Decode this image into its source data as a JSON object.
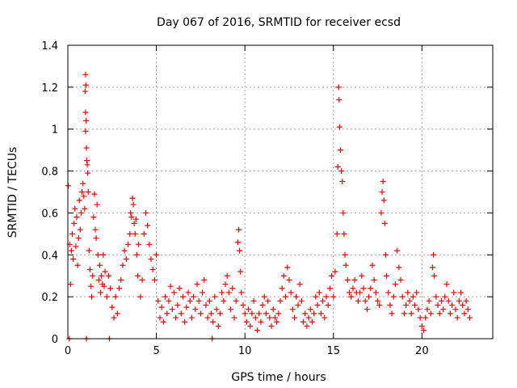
{
  "chart_data": {
    "type": "scatter",
    "title": "Day 067 of 2016, SRMTID for receiver ecsd",
    "xlabel": "GPS time / hours",
    "ylabel": "SRMTID / TECUs",
    "xlim": [
      0,
      24
    ],
    "ylim": [
      0,
      1.4
    ],
    "x_ticks": [
      0,
      5,
      10,
      15,
      20
    ],
    "x_tick_labels": [
      "0",
      "5",
      "10",
      "15",
      "20"
    ],
    "y_ticks": [
      0,
      0.2,
      0.4,
      0.6,
      0.8,
      1,
      1.2,
      1.4
    ],
    "y_tick_labels": [
      "0",
      "0.2",
      "0.4",
      "0.6",
      "0.8",
      "1",
      "1.2",
      "1.4"
    ],
    "grid": true,
    "marker": "+",
    "series": [
      {
        "name": "SRMTID",
        "color": "#ff0000",
        "points": [
          [
            0.02,
            0.73
          ],
          [
            0.08,
            0.0
          ],
          [
            0.1,
            0.45
          ],
          [
            0.15,
            0.26
          ],
          [
            0.2,
            0.42
          ],
          [
            0.25,
            0.5
          ],
          [
            0.3,
            0.38
          ],
          [
            0.35,
            0.55
          ],
          [
            0.4,
            0.62
          ],
          [
            0.45,
            0.44
          ],
          [
            0.5,
            0.58
          ],
          [
            0.55,
            0.35
          ],
          [
            0.6,
            0.48
          ],
          [
            0.65,
            0.66
          ],
          [
            0.7,
            0.52
          ],
          [
            0.75,
            0.6
          ],
          [
            0.8,
            0.7
          ],
          [
            0.85,
            0.74
          ],
          [
            0.9,
            0.68
          ],
          [
            0.95,
            0.62
          ],
          [
            0.98,
            1.18
          ],
          [
            1.0,
            1.26
          ],
          [
            1.02,
            1.21
          ],
          [
            1.0,
            1.08
          ],
          [
            1.03,
            1.04
          ],
          [
            1.0,
            0.99
          ],
          [
            1.05,
            0.91
          ],
          [
            1.07,
            0.85
          ],
          [
            1.1,
            0.83
          ],
          [
            1.12,
            0.79
          ],
          [
            1.15,
            0.7
          ],
          [
            1.05,
            0.0
          ],
          [
            1.2,
            0.42
          ],
          [
            1.25,
            0.33
          ],
          [
            1.3,
            0.25
          ],
          [
            1.35,
            0.2
          ],
          [
            1.4,
            0.3
          ],
          [
            1.45,
            0.58
          ],
          [
            1.5,
            0.69
          ],
          [
            1.55,
            0.52
          ],
          [
            1.6,
            0.48
          ],
          [
            1.65,
            0.64
          ],
          [
            1.7,
            0.4
          ],
          [
            1.75,
            0.28
          ],
          [
            1.8,
            0.35
          ],
          [
            1.85,
            0.22
          ],
          [
            1.9,
            0.3
          ],
          [
            1.95,
            0.26
          ],
          [
            2.0,
            0.4
          ],
          [
            2.05,
            0.25
          ],
          [
            2.1,
            0.32
          ],
          [
            2.2,
            0.2
          ],
          [
            2.3,
            0.3
          ],
          [
            2.35,
            0.0
          ],
          [
            2.4,
            0.24
          ],
          [
            2.5,
            0.15
          ],
          [
            2.6,
            0.1
          ],
          [
            2.7,
            0.2
          ],
          [
            2.8,
            0.12
          ],
          [
            2.9,
            0.24
          ],
          [
            3.0,
            0.28
          ],
          [
            3.1,
            0.35
          ],
          [
            3.2,
            0.42
          ],
          [
            3.3,
            0.38
          ],
          [
            3.4,
            0.45
          ],
          [
            3.5,
            0.5
          ],
          [
            3.55,
            0.6
          ],
          [
            3.6,
            0.58
          ],
          [
            3.65,
            0.67
          ],
          [
            3.7,
            0.64
          ],
          [
            3.75,
            0.55
          ],
          [
            3.8,
            0.5
          ],
          [
            3.85,
            0.57
          ],
          [
            3.9,
            0.4
          ],
          [
            3.95,
            0.3
          ],
          [
            4.0,
            0.45
          ],
          [
            4.1,
            0.2
          ],
          [
            4.2,
            0.28
          ],
          [
            4.3,
            0.5
          ],
          [
            4.4,
            0.6
          ],
          [
            4.5,
            0.54
          ],
          [
            4.6,
            0.45
          ],
          [
            4.7,
            0.38
          ],
          [
            4.8,
            0.33
          ],
          [
            4.9,
            0.28
          ],
          [
            5.0,
            0.4
          ],
          [
            5.1,
            0.18
          ],
          [
            5.2,
            0.1
          ],
          [
            5.3,
            0.15
          ],
          [
            5.4,
            0.08
          ],
          [
            5.5,
            0.2
          ],
          [
            5.6,
            0.12
          ],
          [
            5.7,
            0.18
          ],
          [
            5.8,
            0.25
          ],
          [
            5.9,
            0.14
          ],
          [
            6.0,
            0.22
          ],
          [
            6.1,
            0.1
          ],
          [
            6.2,
            0.16
          ],
          [
            6.3,
            0.24
          ],
          [
            6.4,
            0.12
          ],
          [
            6.5,
            0.2
          ],
          [
            6.6,
            0.08
          ],
          [
            6.7,
            0.15
          ],
          [
            6.8,
            0.22
          ],
          [
            6.9,
            0.18
          ],
          [
            7.0,
            0.1
          ],
          [
            7.1,
            0.2
          ],
          [
            7.2,
            0.14
          ],
          [
            7.3,
            0.26
          ],
          [
            7.4,
            0.18
          ],
          [
            7.5,
            0.12
          ],
          [
            7.6,
            0.22
          ],
          [
            7.7,
            0.28
          ],
          [
            7.8,
            0.16
          ],
          [
            7.9,
            0.1
          ],
          [
            8.0,
            0.18
          ],
          [
            8.1,
            0.12
          ],
          [
            8.15,
            0.0
          ],
          [
            8.2,
            0.08
          ],
          [
            8.3,
            0.2
          ],
          [
            8.4,
            0.14
          ],
          [
            8.5,
            0.06
          ],
          [
            8.6,
            0.12
          ],
          [
            8.7,
            0.22
          ],
          [
            8.8,
            0.18
          ],
          [
            8.9,
            0.26
          ],
          [
            9.0,
            0.3
          ],
          [
            9.1,
            0.22
          ],
          [
            9.2,
            0.14
          ],
          [
            9.3,
            0.24
          ],
          [
            9.4,
            0.1
          ],
          [
            9.5,
            0.18
          ],
          [
            9.6,
            0.46
          ],
          [
            9.65,
            0.52
          ],
          [
            9.7,
            0.42
          ],
          [
            9.75,
            0.32
          ],
          [
            9.8,
            0.22
          ],
          [
            9.9,
            0.16
          ],
          [
            10.0,
            0.12
          ],
          [
            10.1,
            0.08
          ],
          [
            10.2,
            0.14
          ],
          [
            10.3,
            0.06
          ],
          [
            10.4,
            0.12
          ],
          [
            10.5,
            0.18
          ],
          [
            10.6,
            0.1
          ],
          [
            10.7,
            0.04
          ],
          [
            10.8,
            0.12
          ],
          [
            10.9,
            0.08
          ],
          [
            11.0,
            0.16
          ],
          [
            11.1,
            0.2
          ],
          [
            11.2,
            0.12
          ],
          [
            11.3,
            0.18
          ],
          [
            11.4,
            0.1
          ],
          [
            11.5,
            0.06
          ],
          [
            11.6,
            0.14
          ],
          [
            11.7,
            0.1
          ],
          [
            11.8,
            0.08
          ],
          [
            11.9,
            0.12
          ],
          [
            12.0,
            0.18
          ],
          [
            12.1,
            0.24
          ],
          [
            12.2,
            0.3
          ],
          [
            12.3,
            0.2
          ],
          [
            12.4,
            0.34
          ],
          [
            12.5,
            0.28
          ],
          [
            12.6,
            0.22
          ],
          [
            12.7,
            0.14
          ],
          [
            12.8,
            0.1
          ],
          [
            12.9,
            0.2
          ],
          [
            13.0,
            0.16
          ],
          [
            13.1,
            0.26
          ],
          [
            13.2,
            0.18
          ],
          [
            13.3,
            0.08
          ],
          [
            13.4,
            0.12
          ],
          [
            13.5,
            0.06
          ],
          [
            13.6,
            0.1
          ],
          [
            13.7,
            0.14
          ],
          [
            13.8,
            0.08
          ],
          [
            13.9,
            0.12
          ],
          [
            14.0,
            0.2
          ],
          [
            14.1,
            0.16
          ],
          [
            14.2,
            0.22
          ],
          [
            14.3,
            0.12
          ],
          [
            14.4,
            0.18
          ],
          [
            14.5,
            0.1
          ],
          [
            14.6,
            0.2
          ],
          [
            14.7,
            0.16
          ],
          [
            14.8,
            0.24
          ],
          [
            14.9,
            0.3
          ],
          [
            15.0,
            0.2
          ],
          [
            15.1,
            0.32
          ],
          [
            15.2,
            0.5
          ],
          [
            15.25,
            0.82
          ],
          [
            15.3,
            1.2
          ],
          [
            15.32,
            1.14
          ],
          [
            15.35,
            1.01
          ],
          [
            15.4,
            0.9
          ],
          [
            15.45,
            0.8
          ],
          [
            15.5,
            0.75
          ],
          [
            15.55,
            0.6
          ],
          [
            15.6,
            0.5
          ],
          [
            15.65,
            0.4
          ],
          [
            15.7,
            0.35
          ],
          [
            15.8,
            0.28
          ],
          [
            15.9,
            0.22
          ],
          [
            16.0,
            0.2
          ],
          [
            16.1,
            0.24
          ],
          [
            16.2,
            0.28
          ],
          [
            16.3,
            0.22
          ],
          [
            16.4,
            0.18
          ],
          [
            16.5,
            0.22
          ],
          [
            16.6,
            0.3
          ],
          [
            16.7,
            0.24
          ],
          [
            16.8,
            0.18
          ],
          [
            16.9,
            0.14
          ],
          [
            17.0,
            0.2
          ],
          [
            17.1,
            0.24
          ],
          [
            17.2,
            0.35
          ],
          [
            17.3,
            0.28
          ],
          [
            17.4,
            0.22
          ],
          [
            17.5,
            0.18
          ],
          [
            17.6,
            0.16
          ],
          [
            17.7,
            0.6
          ],
          [
            17.75,
            0.7
          ],
          [
            17.8,
            0.75
          ],
          [
            17.85,
            0.66
          ],
          [
            17.9,
            0.55
          ],
          [
            17.95,
            0.4
          ],
          [
            18.0,
            0.3
          ],
          [
            18.1,
            0.22
          ],
          [
            18.2,
            0.16
          ],
          [
            18.3,
            0.12
          ],
          [
            18.4,
            0.2
          ],
          [
            18.5,
            0.26
          ],
          [
            18.6,
            0.42
          ],
          [
            18.7,
            0.34
          ],
          [
            18.8,
            0.28
          ],
          [
            18.9,
            0.2
          ],
          [
            19.0,
            0.12
          ],
          [
            19.1,
            0.16
          ],
          [
            19.2,
            0.22
          ],
          [
            19.3,
            0.18
          ],
          [
            19.4,
            0.12
          ],
          [
            19.5,
            0.2
          ],
          [
            19.6,
            0.16
          ],
          [
            19.7,
            0.22
          ],
          [
            19.8,
            0.14
          ],
          [
            19.9,
            0.1
          ],
          [
            20.0,
            0.06
          ],
          [
            20.1,
            0.04
          ],
          [
            20.2,
            0.1
          ],
          [
            20.3,
            0.14
          ],
          [
            20.4,
            0.18
          ],
          [
            20.5,
            0.12
          ],
          [
            20.6,
            0.34
          ],
          [
            20.65,
            0.4
          ],
          [
            20.7,
            0.3
          ],
          [
            20.8,
            0.2
          ],
          [
            20.9,
            0.16
          ],
          [
            21.0,
            0.12
          ],
          [
            21.1,
            0.18
          ],
          [
            21.2,
            0.14
          ],
          [
            21.3,
            0.2
          ],
          [
            21.4,
            0.26
          ],
          [
            21.5,
            0.18
          ],
          [
            21.6,
            0.12
          ],
          [
            21.7,
            0.16
          ],
          [
            21.8,
            0.22
          ],
          [
            21.9,
            0.14
          ],
          [
            22.0,
            0.1
          ],
          [
            22.1,
            0.18
          ],
          [
            22.2,
            0.22
          ],
          [
            22.3,
            0.16
          ],
          [
            22.4,
            0.12
          ],
          [
            22.5,
            0.18
          ],
          [
            22.6,
            0.14
          ],
          [
            22.7,
            0.1
          ]
        ]
      }
    ]
  }
}
